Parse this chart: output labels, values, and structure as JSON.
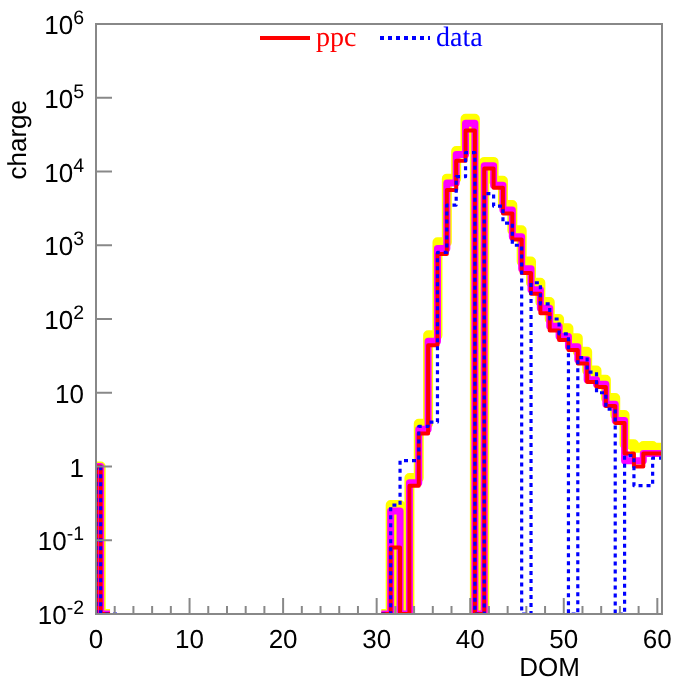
{
  "chart_data": {
    "type": "step",
    "xlabel": "DOM",
    "ylabel": "charge",
    "log": true,
    "legend": "top",
    "grid": false,
    "x": [
      0,
      1,
      2,
      3,
      4,
      5,
      6,
      7,
      8,
      9,
      10,
      11,
      12,
      13,
      14,
      15,
      16,
      17,
      18,
      19,
      20,
      21,
      22,
      23,
      24,
      25,
      26,
      27,
      28,
      29,
      30,
      31,
      32,
      33,
      34,
      35,
      36,
      37,
      38,
      39,
      40,
      41,
      42,
      43,
      44,
      45,
      46,
      47,
      48,
      49,
      50,
      51,
      52,
      53,
      54,
      55,
      56,
      57,
      58,
      59,
      60
    ],
    "xlim": [
      0,
      60.5
    ],
    "xticks": [
      0,
      {
        "value": 2,
        "label": null
      },
      {
        "value": 4,
        "label": null
      },
      {
        "value": 6,
        "label": null
      },
      {
        "value": 8,
        "label": null
      },
      10,
      {
        "value": 12,
        "label": null
      },
      {
        "value": 14,
        "label": null
      },
      {
        "value": 16,
        "label": null
      },
      {
        "value": 18,
        "label": null
      },
      20,
      {
        "value": 22,
        "label": null
      },
      {
        "value": 24,
        "label": null
      },
      {
        "value": 26,
        "label": null
      },
      {
        "value": 28,
        "label": null
      },
      30,
      {
        "value": 32,
        "label": null
      },
      {
        "value": 34,
        "label": null
      },
      {
        "value": 36,
        "label": null
      },
      {
        "value": 38,
        "label": null
      },
      40,
      {
        "value": 42,
        "label": null
      },
      {
        "value": 44,
        "label": null
      },
      {
        "value": 46,
        "label": null
      },
      {
        "value": 48,
        "label": null
      },
      50,
      {
        "value": 52,
        "label": null
      },
      {
        "value": 54,
        "label": null
      },
      {
        "value": 56,
        "label": null
      },
      {
        "value": 58,
        "label": null
      },
      60
    ],
    "ylim": [
      0.01,
      1000000
    ],
    "yticks": [
      {
        "value": 0.01,
        "label": "10$^{-2}$"
      },
      {
        "value": 0.1,
        "label": "10$^{-1}$"
      },
      1,
      10,
      {
        "value": 100,
        "label": "10$^{2}$"
      },
      {
        "value": 1000,
        "label": "10$^{3}$"
      },
      {
        "value": 10000,
        "label": "10$^{4}$"
      },
      {
        "value": 100000,
        "label": "10$^{5}$"
      },
      {
        "value": 1000000,
        "label": "10$^{6}$"
      }
    ],
    "series": [
      {
        "color": "#ffff00",
        "line_style": "solid",
        "values": [
          1,
          0.01,
          null,
          null,
          null,
          null,
          null,
          null,
          null,
          null,
          null,
          null,
          null,
          null,
          null,
          null,
          null,
          null,
          null,
          null,
          null,
          null,
          null,
          null,
          null,
          null,
          null,
          null,
          null,
          null,
          null,
          0.01,
          0.3,
          0.01,
          0.7,
          3.8,
          60,
          1100,
          8000,
          19000,
          52000,
          0.01,
          13500,
          7500,
          3500,
          1600,
          600,
          310,
          170,
          100,
          75,
          55,
          36,
          20,
          15,
          8.5,
          5,
          2,
          1.8,
          1.9,
          1.8
        ]
      },
      {
        "color": "#ff00ff",
        "line_style": "solid",
        "values": [
          1,
          0.01,
          null,
          null,
          null,
          null,
          null,
          null,
          null,
          null,
          null,
          null,
          null,
          null,
          null,
          null,
          null,
          null,
          null,
          null,
          null,
          null,
          null,
          null,
          null,
          null,
          null,
          null,
          null,
          null,
          null,
          0.01,
          0.25,
          0.01,
          0.6,
          3.2,
          50,
          900,
          7000,
          17000,
          45000,
          0.01,
          12000,
          6500,
          3000,
          1300,
          480,
          250,
          140,
          80,
          58,
          42,
          28,
          15,
          13,
          7,
          4.2,
          1.2,
          1.2,
          1.5,
          1.5
        ]
      },
      {
        "name": "ppc",
        "color": "#ff0000",
        "line_style": "solid",
        "values": [
          1,
          0.01,
          null,
          null,
          null,
          null,
          null,
          null,
          null,
          null,
          null,
          null,
          null,
          null,
          null,
          null,
          null,
          null,
          null,
          null,
          null,
          null,
          null,
          null,
          null,
          null,
          null,
          null,
          null,
          null,
          null,
          0.01,
          0.08,
          0.01,
          0.55,
          2.8,
          44,
          760,
          5600,
          14000,
          36000,
          0.01,
          11000,
          6000,
          2700,
          1200,
          420,
          220,
          120,
          70,
          52,
          38,
          25,
          14,
          12,
          6.6,
          3.9,
          1.5,
          1.0,
          1.5,
          1.5
        ]
      },
      {
        "name": "data",
        "color": "#0000ff",
        "line_style": "dotted",
        "values": [
          1,
          0.01,
          0.01,
          null,
          null,
          null,
          null,
          null,
          null,
          null,
          null,
          null,
          null,
          null,
          null,
          null,
          null,
          null,
          null,
          null,
          null,
          null,
          null,
          null,
          null,
          null,
          null,
          null,
          null,
          null,
          null,
          0.01,
          0.3,
          1.2,
          1.2,
          3.5,
          4,
          800,
          3500,
          8500,
          18000,
          0.01,
          5000,
          3400,
          2000,
          1000,
          0.01,
          310,
          160,
          100,
          63,
          0.01,
          30,
          19,
          10,
          6,
          0.01,
          1.4,
          0.55,
          0.55,
          1.3
        ]
      }
    ]
  }
}
